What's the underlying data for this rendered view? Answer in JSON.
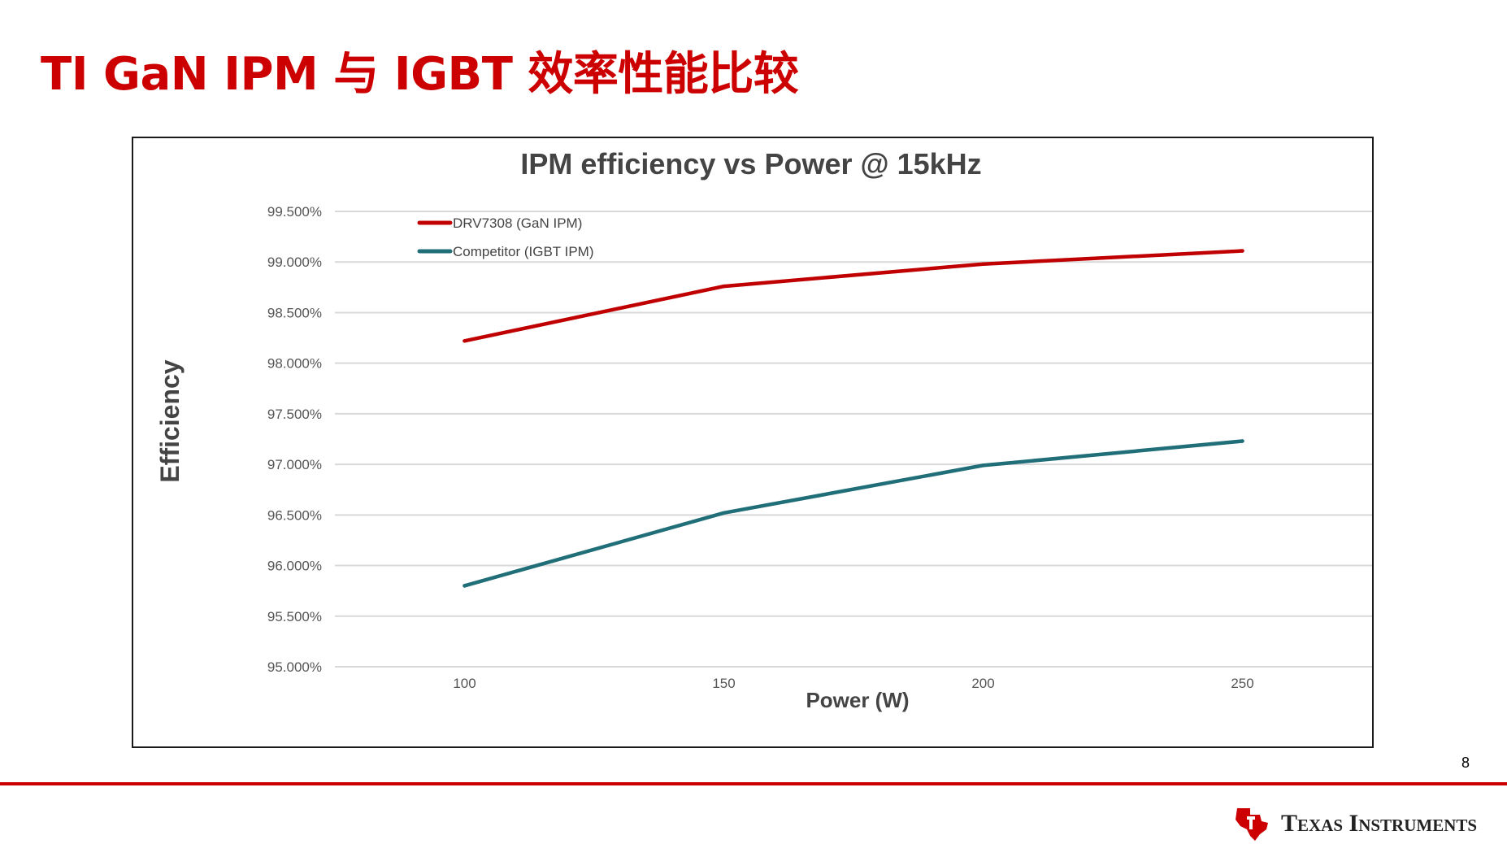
{
  "slide": {
    "title": "TI GaN IPM 与 IGBT 效率性能比较",
    "page_number": "8",
    "brand": "Texas Instruments"
  },
  "colors": {
    "title_red": "#cc0000",
    "gan_series": "#c00000",
    "igbt_series": "#1f6e78",
    "grid": "#d9d9d9"
  },
  "icons": {
    "logo": "texas-state-logo-icon"
  },
  "chart_data": {
    "type": "line",
    "title": "IPM efficiency vs Power @ 15kHz",
    "xlabel": "Power (W)",
    "ylabel": "Efficiency",
    "x": [
      100,
      150,
      200,
      250
    ],
    "x_tick_labels": [
      "100",
      "150",
      "200",
      "250"
    ],
    "xlim": [
      75,
      275
    ],
    "ylim": [
      95.0,
      99.5
    ],
    "y_ticks": [
      95.0,
      95.5,
      96.0,
      96.5,
      97.0,
      97.5,
      98.0,
      98.5,
      99.0,
      99.5
    ],
    "y_tick_labels": [
      "95.000%",
      "95.500%",
      "96.000%",
      "96.500%",
      "97.000%",
      "97.500%",
      "98.000%",
      "98.500%",
      "99.000%",
      "99.500%"
    ],
    "grid": true,
    "legend_position": "top-left",
    "series": [
      {
        "name": "DRV7308 (GaN IPM)",
        "color": "#c00000",
        "values": [
          98.22,
          98.76,
          98.98,
          99.11
        ]
      },
      {
        "name": "Competitor (IGBT IPM)",
        "color": "#1f6e78",
        "values": [
          95.8,
          96.52,
          96.99,
          97.23
        ]
      }
    ]
  }
}
